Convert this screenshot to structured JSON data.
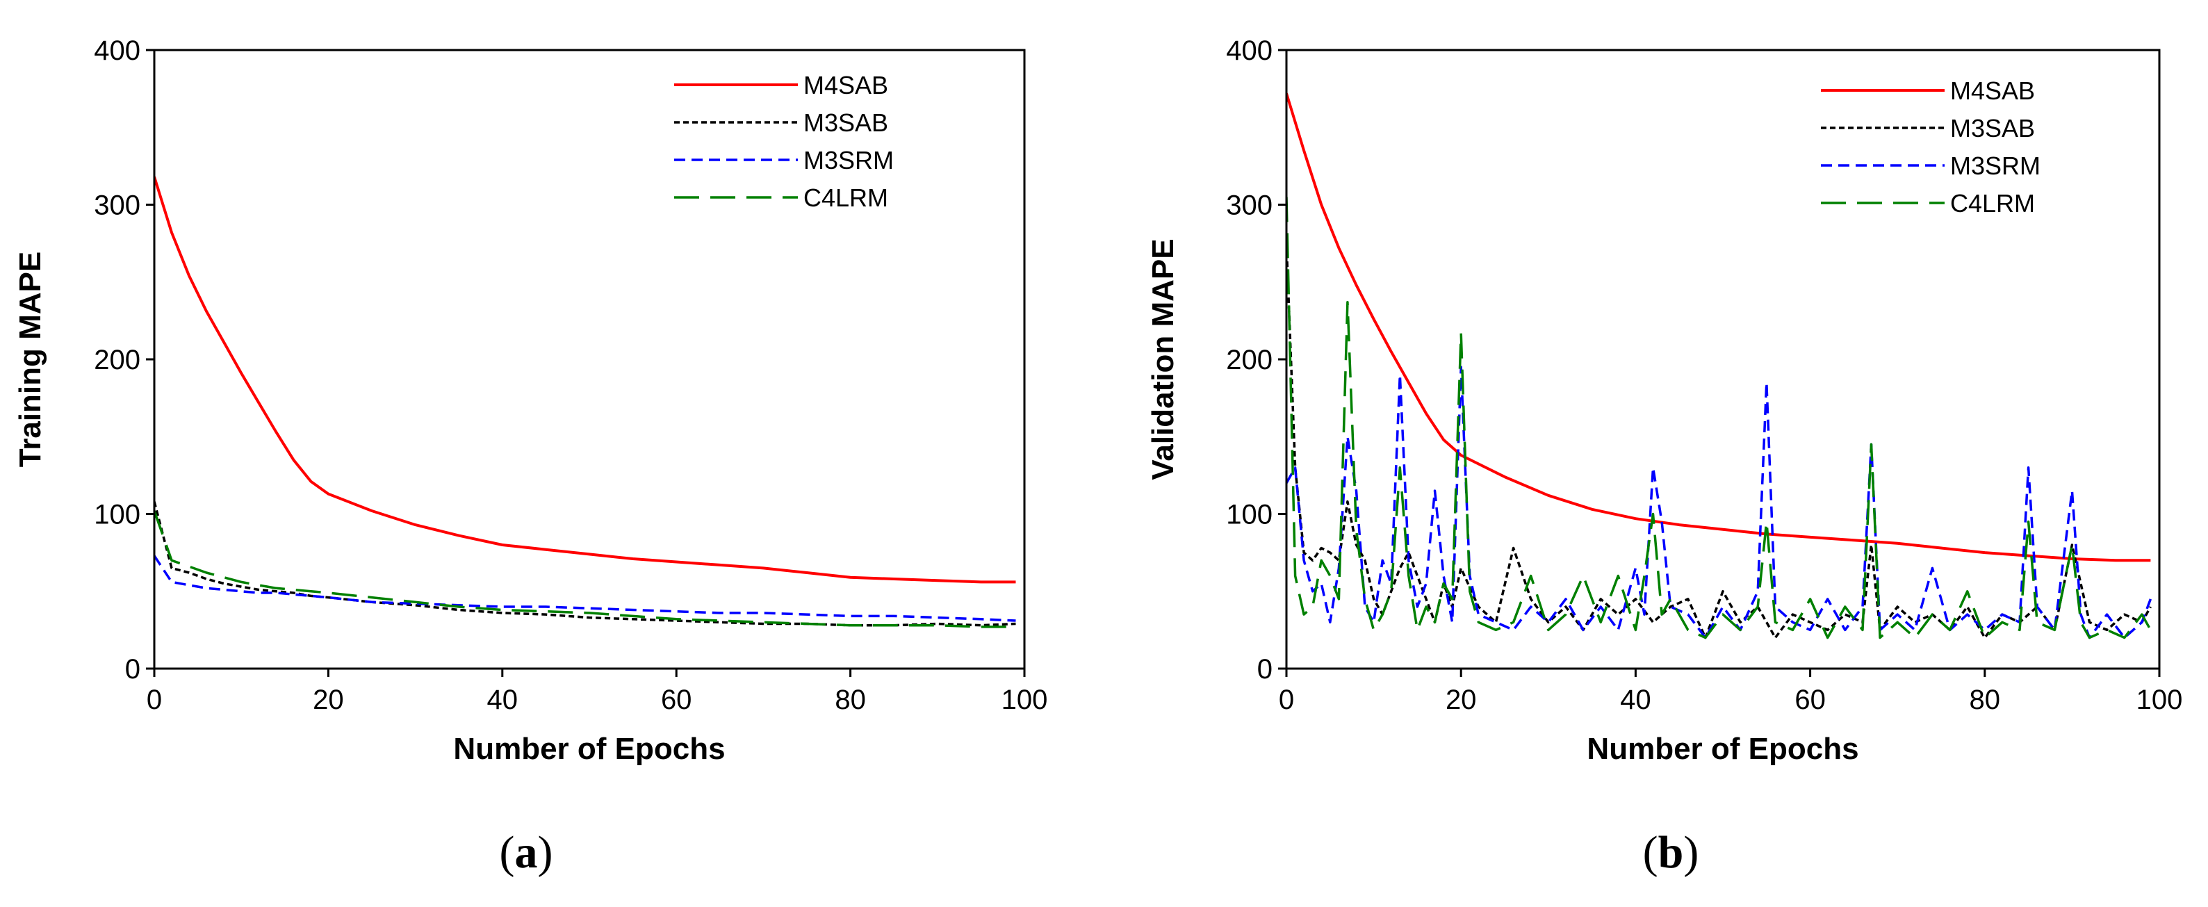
{
  "chart_data": [
    {
      "type": "line",
      "panel_label_open": "(",
      "panel_label_letter": "a",
      "panel_label_close": ")",
      "xlabel": "Number of Epochs",
      "ylabel": "Training MAPE",
      "xlim": [
        0,
        100
      ],
      "ylim": [
        0,
        400
      ],
      "xticks": [
        "0",
        "20",
        "40",
        "60",
        "80",
        "100"
      ],
      "yticks": [
        "0",
        "100",
        "200",
        "300",
        "400"
      ],
      "legend_position": "top-right",
      "x": [
        0,
        2,
        4,
        6,
        8,
        10,
        12,
        14,
        16,
        18,
        20,
        25,
        30,
        35,
        40,
        45,
        50,
        55,
        60,
        65,
        70,
        75,
        80,
        85,
        90,
        95,
        99
      ],
      "series": [
        {
          "name": "M4SAB",
          "color": "#ff0000",
          "dash": "solid",
          "values": [
            318,
            282,
            254,
            231,
            211,
            191,
            172,
            153,
            135,
            121,
            113,
            102,
            93,
            86,
            80,
            77,
            74,
            71,
            69,
            67,
            65,
            62,
            59,
            58,
            57,
            56,
            56
          ]
        },
        {
          "name": "M3SAB",
          "color": "#000000",
          "dash": "dotted",
          "values": [
            108,
            65,
            62,
            58,
            55,
            53,
            51,
            50,
            49,
            47,
            46,
            43,
            41,
            38,
            36,
            35,
            33,
            32,
            31,
            30,
            29,
            29,
            28,
            28,
            29,
            28,
            29
          ]
        },
        {
          "name": "M3SRM",
          "color": "#0000ff",
          "dash": "short",
          "values": [
            73,
            56,
            54,
            52,
            51,
            50,
            49,
            49,
            48,
            47,
            46,
            43,
            42,
            41,
            40,
            40,
            39,
            38,
            37,
            36,
            36,
            35,
            34,
            34,
            33,
            32,
            31
          ]
        },
        {
          "name": "C4LRM",
          "color": "#008000",
          "dash": "long",
          "values": [
            102,
            70,
            66,
            62,
            59,
            56,
            54,
            52,
            51,
            50,
            49,
            46,
            43,
            40,
            38,
            37,
            36,
            34,
            32,
            31,
            30,
            29,
            28,
            28,
            28,
            27,
            27
          ]
        }
      ]
    },
    {
      "type": "line",
      "panel_label_open": "(",
      "panel_label_letter": "b",
      "panel_label_close": ")",
      "xlabel": "Number of Epochs",
      "ylabel": "Validation MAPE",
      "xlim": [
        0,
        100
      ],
      "ylim": [
        0,
        400
      ],
      "xticks": [
        "0",
        "20",
        "40",
        "60",
        "80",
        "100"
      ],
      "yticks": [
        "0",
        "100",
        "200",
        "300",
        "400"
      ],
      "legend_position": "top-right",
      "series": [
        {
          "name": "M4SAB",
          "color": "#ff0000",
          "dash": "solid",
          "x": [
            0,
            2,
            4,
            6,
            8,
            10,
            12,
            14,
            16,
            18,
            20,
            25,
            30,
            35,
            40,
            45,
            50,
            55,
            60,
            65,
            70,
            75,
            80,
            85,
            90,
            95,
            99
          ],
          "values": [
            372,
            335,
            300,
            272,
            248,
            226,
            205,
            185,
            165,
            148,
            138,
            124,
            112,
            103,
            97,
            93,
            90,
            87,
            85,
            83,
            81,
            78,
            75,
            73,
            71,
            70,
            70
          ]
        },
        {
          "name": "M3SAB",
          "color": "#000000",
          "dash": "dotted",
          "x": [
            0,
            1,
            2,
            3,
            4,
            5,
            6,
            7,
            8,
            9,
            10,
            11,
            12,
            13,
            14,
            15,
            16,
            17,
            18,
            19,
            20,
            22,
            24,
            26,
            28,
            30,
            32,
            34,
            36,
            38,
            40,
            42,
            44,
            46,
            48,
            50,
            52,
            54,
            56,
            58,
            60,
            62,
            64,
            66,
            67,
            68,
            70,
            72,
            74,
            76,
            78,
            80,
            82,
            84,
            86,
            88,
            90,
            92,
            94,
            96,
            98,
            99
          ],
          "values": [
            275,
            130,
            75,
            70,
            78,
            75,
            70,
            108,
            80,
            70,
            45,
            35,
            50,
            65,
            75,
            60,
            45,
            30,
            55,
            40,
            65,
            40,
            30,
            78,
            45,
            30,
            40,
            25,
            45,
            35,
            45,
            30,
            40,
            45,
            20,
            50,
            30,
            40,
            20,
            35,
            30,
            25,
            35,
            30,
            80,
            25,
            40,
            30,
            35,
            25,
            40,
            20,
            35,
            30,
            40,
            25,
            80,
            30,
            25,
            35,
            30,
            40
          ]
        },
        {
          "name": "M3SRM",
          "color": "#0000ff",
          "dash": "short",
          "x": [
            0,
            1,
            2,
            3,
            4,
            5,
            6,
            7,
            8,
            9,
            10,
            11,
            12,
            13,
            14,
            15,
            16,
            17,
            18,
            19,
            20,
            21,
            22,
            24,
            26,
            28,
            30,
            32,
            34,
            36,
            38,
            40,
            41,
            42,
            43,
            44,
            46,
            48,
            50,
            52,
            54,
            55,
            56,
            58,
            60,
            62,
            64,
            66,
            67,
            68,
            70,
            72,
            74,
            76,
            78,
            80,
            82,
            84,
            85,
            86,
            88,
            90,
            91,
            92,
            94,
            96,
            98,
            99
          ],
          "values": [
            120,
            130,
            70,
            50,
            55,
            30,
            65,
            150,
            115,
            40,
            30,
            70,
            55,
            190,
            70,
            40,
            55,
            115,
            60,
            30,
            195,
            60,
            35,
            30,
            25,
            40,
            30,
            45,
            25,
            40,
            25,
            65,
            35,
            130,
            95,
            40,
            35,
            20,
            40,
            25,
            50,
            185,
            40,
            30,
            25,
            45,
            25,
            40,
            145,
            25,
            35,
            25,
            65,
            25,
            35,
            25,
            35,
            30,
            130,
            40,
            25,
            115,
            35,
            20,
            35,
            20,
            30,
            45
          ]
        },
        {
          "name": "C4LRM",
          "color": "#008000",
          "dash": "long",
          "x": [
            0,
            1,
            2,
            3,
            4,
            5,
            6,
            7,
            8,
            9,
            10,
            11,
            12,
            13,
            14,
            15,
            16,
            17,
            18,
            19,
            20,
            21,
            22,
            24,
            26,
            28,
            30,
            32,
            34,
            36,
            38,
            40,
            41,
            42,
            43,
            44,
            46,
            48,
            50,
            52,
            54,
            55,
            56,
            58,
            60,
            62,
            64,
            66,
            67,
            68,
            70,
            72,
            74,
            76,
            78,
            80,
            82,
            84,
            85,
            86,
            88,
            90,
            91,
            92,
            94,
            96,
            98,
            99
          ],
          "values": [
            305,
            60,
            35,
            40,
            70,
            60,
            45,
            237,
            90,
            45,
            25,
            35,
            50,
            130,
            60,
            25,
            40,
            30,
            55,
            45,
            217,
            50,
            30,
            25,
            30,
            60,
            25,
            35,
            60,
            30,
            60,
            25,
            60,
            100,
            35,
            45,
            25,
            20,
            35,
            25,
            40,
            95,
            30,
            25,
            45,
            20,
            40,
            25,
            145,
            20,
            30,
            20,
            35,
            25,
            50,
            20,
            30,
            25,
            95,
            30,
            25,
            80,
            30,
            20,
            25,
            20,
            35,
            25
          ]
        }
      ]
    }
  ]
}
